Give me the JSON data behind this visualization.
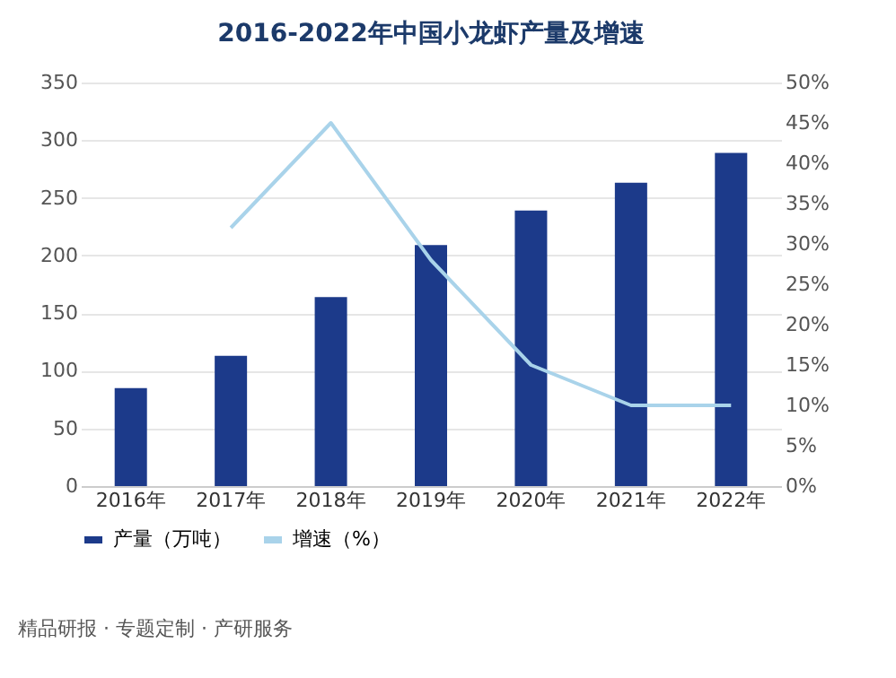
{
  "chart_data": {
    "type": "bar",
    "title": "2016-2022年中国小龙虾产量及增速",
    "categories": [
      "2016年",
      "2017年",
      "2018年",
      "2019年",
      "2020年",
      "2021年",
      "2022年"
    ],
    "series": [
      {
        "name": "产量（万吨）",
        "color": "#1c3a8a",
        "values": [
          85,
          113,
          164,
          209,
          239,
          263,
          289
        ]
      },
      {
        "name": "增速（%）",
        "type": "line",
        "axis": "y2",
        "color": "#a9d3ea",
        "values": [
          null,
          32,
          45,
          28,
          15,
          10,
          10
        ]
      }
    ],
    "ylim": [
      0,
      350
    ],
    "yticks": [
      0,
      50,
      100,
      150,
      200,
      250,
      300,
      350
    ],
    "y2lim": [
      0,
      50
    ],
    "y2ticks": [
      {
        "value": 0,
        "label": "0%"
      },
      {
        "value": 5,
        "label": "5%"
      },
      {
        "value": 10,
        "label": "10%"
      },
      {
        "value": 15,
        "label": "15%"
      },
      {
        "value": 20,
        "label": "20%"
      },
      {
        "value": 25,
        "label": "25%"
      },
      {
        "value": 30,
        "label": "30%"
      },
      {
        "value": 35,
        "label": "35%"
      },
      {
        "value": 40,
        "label": "40%"
      },
      {
        "value": 45,
        "label": "45%"
      },
      {
        "value": 50,
        "label": "50%"
      }
    ],
    "grid": "y",
    "legend": "bottom",
    "marker": "none",
    "line_style": "solid",
    "annotations": [
      "精品研报 · 专题定制 · 产研服务"
    ]
  }
}
